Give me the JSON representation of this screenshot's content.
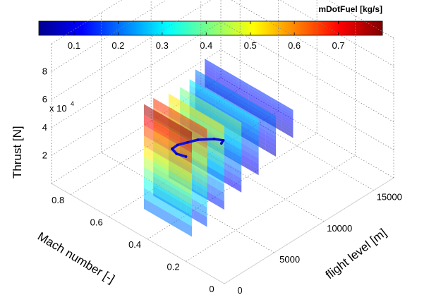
{
  "chart_data": {
    "type": "3d-surface-slices",
    "colorbar": {
      "title": "mDotFuel [kg/s]",
      "colormap": "jet",
      "range": [
        0.02,
        0.8
      ],
      "ticks": [
        "0.1",
        "0.2",
        "0.3",
        "0.4",
        "0.5",
        "0.6",
        "0.7"
      ]
    },
    "axes": {
      "z": {
        "label": "Thrust [N]",
        "multiplier": "x 10",
        "exponent": "4",
        "ticks": [
          "2",
          "4",
          "6",
          "8"
        ],
        "range": [
          0,
          10
        ]
      },
      "mach": {
        "label": "Mach number [-]",
        "ticks": [
          "0",
          "0.2",
          "0.4",
          "0.6",
          "0.8"
        ],
        "range": [
          0,
          0.9
        ]
      },
      "fl": {
        "label": "flight level [m]",
        "ticks": [
          "0",
          "5000",
          "10000",
          "15000"
        ],
        "range": [
          0,
          17000
        ]
      }
    },
    "grid": true,
    "slices": [
      {
        "fl": 600,
        "mach": [
          0.2,
          0.45
        ],
        "thrust": [
          1.5,
          9.0
        ]
      },
      {
        "fl": 2500,
        "mach": [
          0.22,
          0.5
        ],
        "thrust": [
          1.2,
          8.2
        ]
      },
      {
        "fl": 5000,
        "mach": [
          0.26,
          0.55
        ],
        "thrust": [
          1.0,
          7.0
        ]
      },
      {
        "fl": 7500,
        "mach": [
          0.3,
          0.62
        ],
        "thrust": [
          0.8,
          5.8
        ]
      },
      {
        "fl": 10000,
        "mach": [
          0.34,
          0.7
        ],
        "thrust": [
          0.6,
          4.6
        ]
      },
      {
        "fl": 12500,
        "mach": [
          0.38,
          0.8
        ],
        "thrust": [
          0.5,
          3.4
        ]
      },
      {
        "fl": 15000,
        "mach": [
          0.42,
          0.88
        ],
        "thrust": [
          0.4,
          2.4
        ]
      }
    ],
    "trajectory": [
      {
        "fl": 0,
        "mach": 0.2,
        "thrust": 7.5
      },
      {
        "fl": 600,
        "mach": 0.28,
        "thrust": 6.8
      },
      {
        "fl": 1500,
        "mach": 0.35,
        "thrust": 6.2
      },
      {
        "fl": 3000,
        "mach": 0.4,
        "thrust": 5.4
      },
      {
        "fl": 5000,
        "mach": 0.45,
        "thrust": 4.3
      },
      {
        "fl": 7000,
        "mach": 0.5,
        "thrust": 3.2
      },
      {
        "fl": 9000,
        "mach": 0.52,
        "thrust": 2.2
      },
      {
        "fl": 10500,
        "mach": 0.55,
        "thrust": 1.2
      },
      {
        "fl": 10500,
        "mach": 0.56,
        "thrust": 0.9
      }
    ]
  }
}
